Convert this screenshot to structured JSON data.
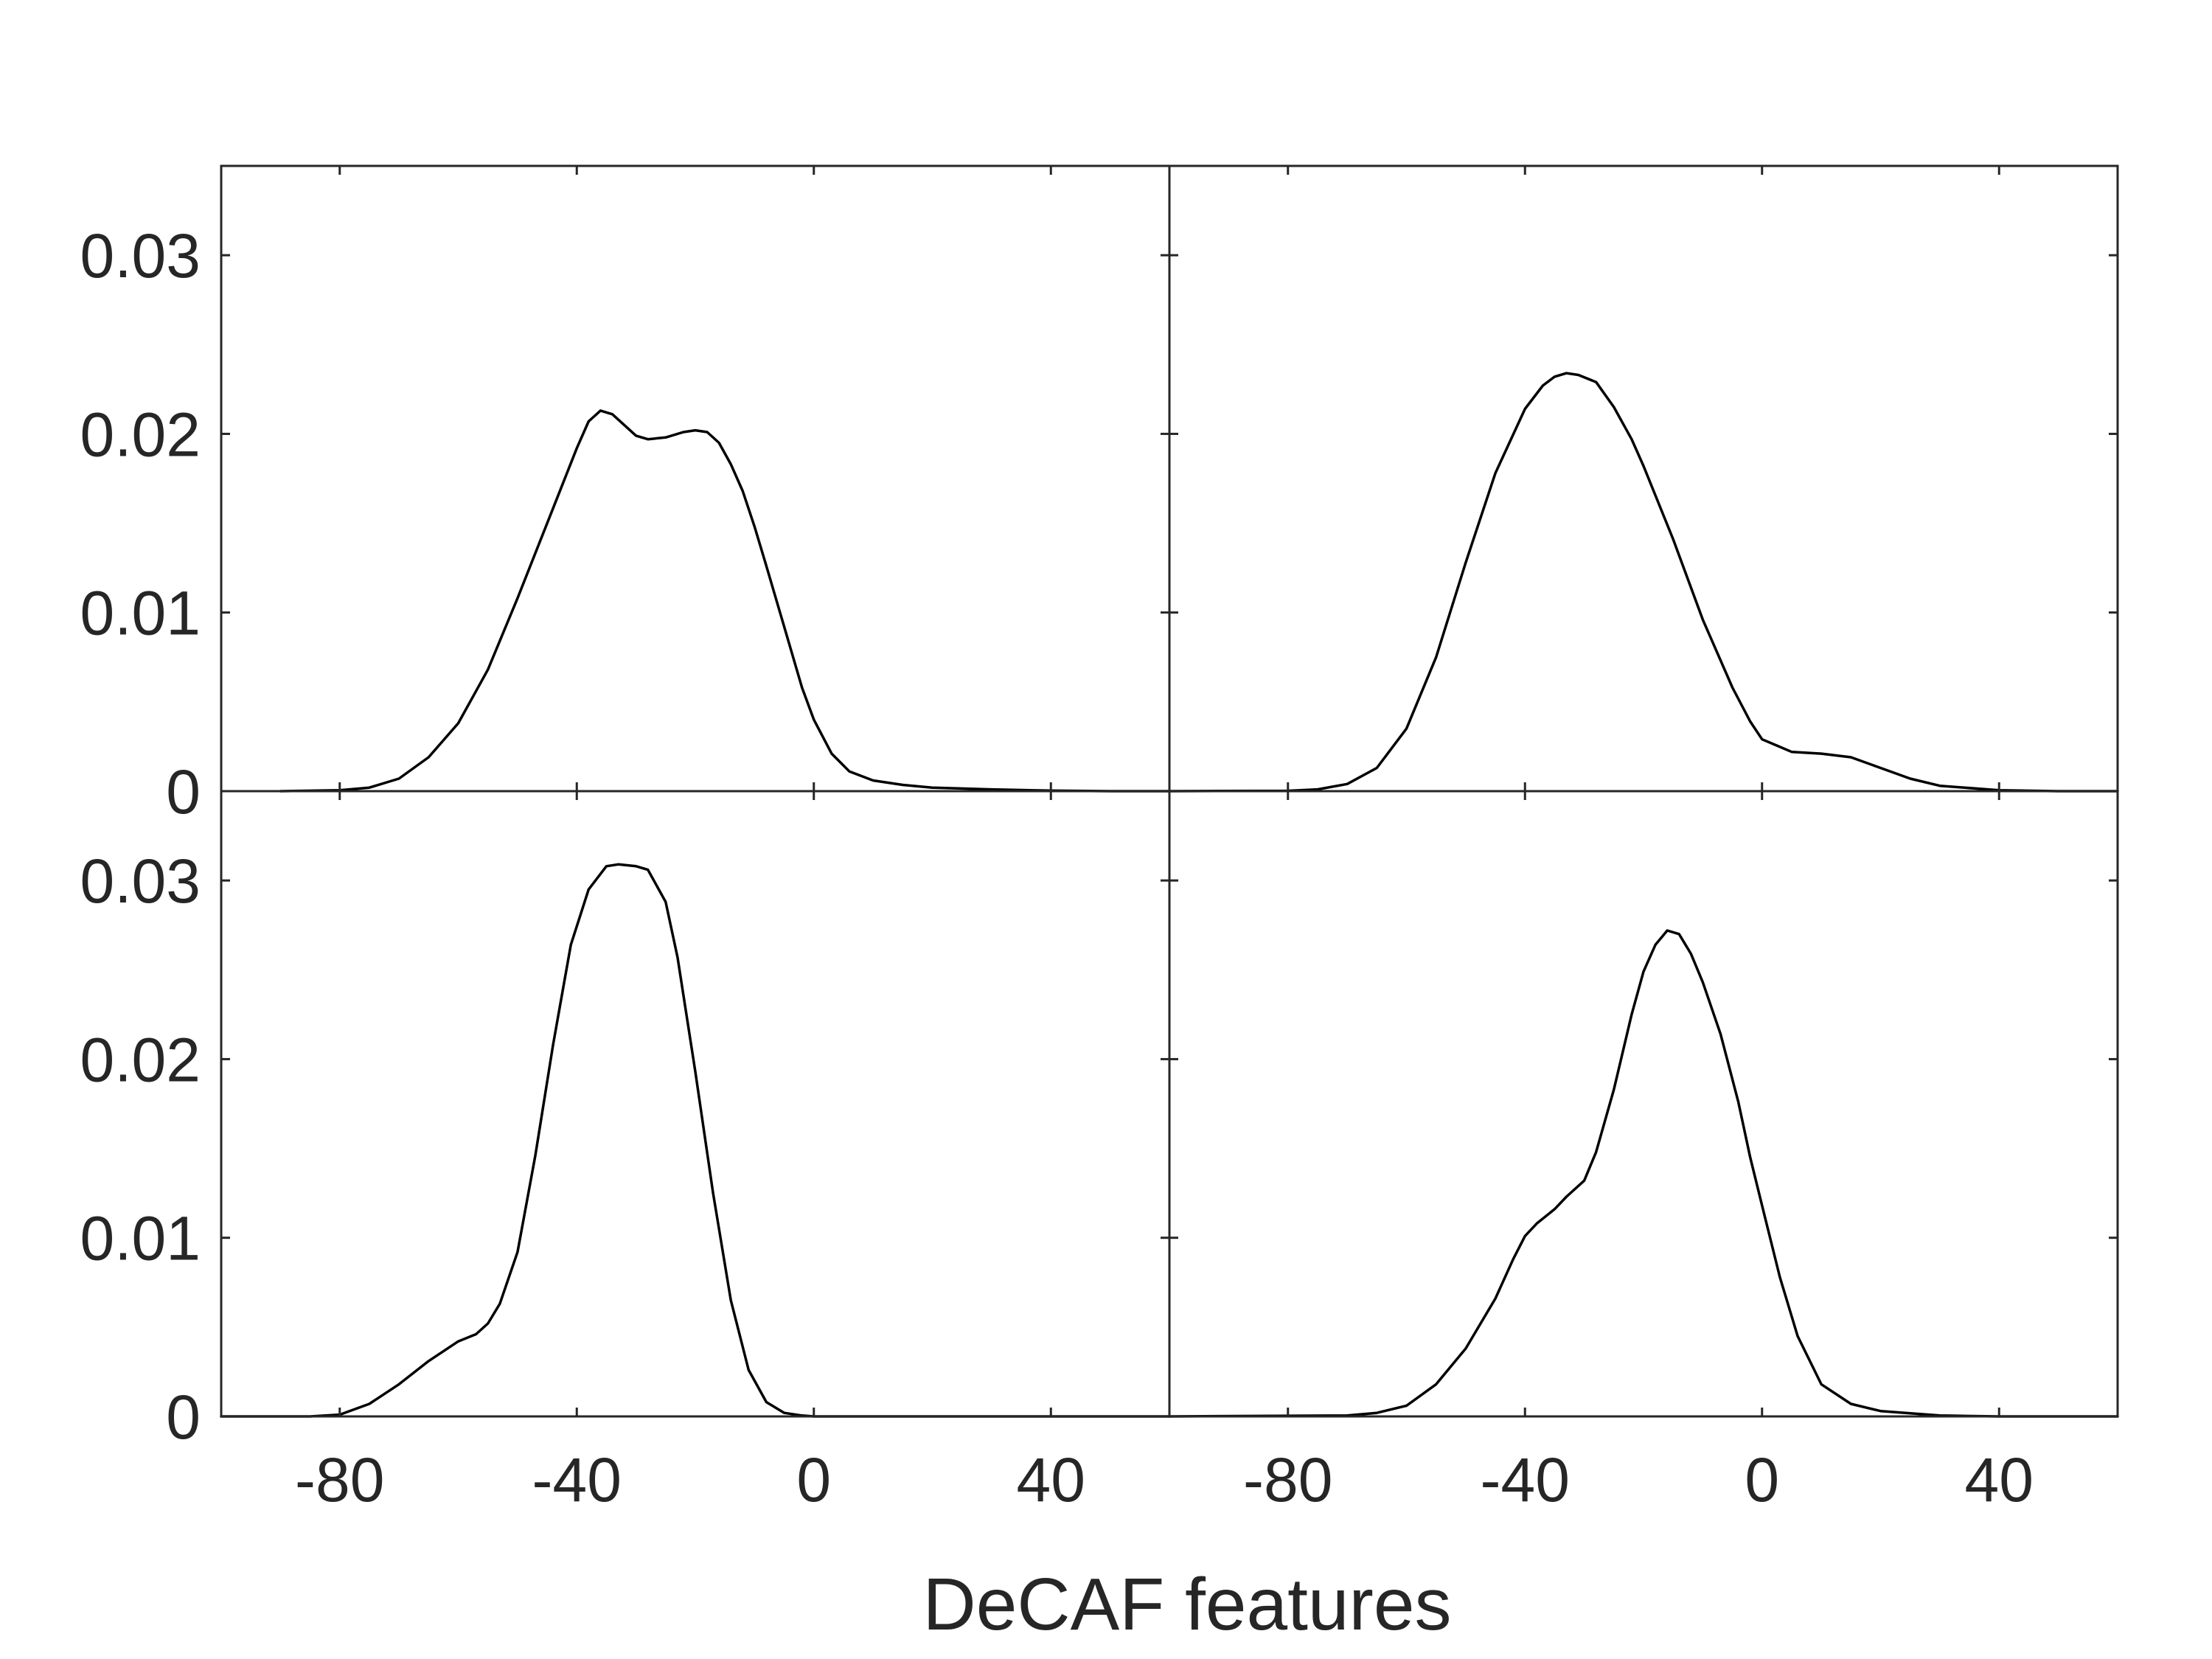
{
  "chart_data": {
    "type": "line",
    "layout": "2x2 grid of density panels sharing axes",
    "xlabel": "DeCAF features",
    "ylabel": "",
    "xlim": [
      -100,
      60
    ],
    "ylim": [
      0,
      0.035
    ],
    "xticks": [
      -80,
      -40,
      0,
      40
    ],
    "xtick_labels": [
      "-80",
      "-40",
      "0",
      "40"
    ],
    "yticks": [
      0,
      0.01,
      0.02,
      0.03
    ],
    "ytick_labels": [
      "0",
      "0.01",
      "0.02",
      "0.03"
    ],
    "grid": false,
    "line_color": "#000000",
    "axis_color": "#262626",
    "panels": [
      {
        "position": "top-left",
        "series": [
          {
            "x": [
              -90,
              -80,
              -75,
              -70,
              -65,
              -60,
              -55,
              -50,
              -45,
              -40,
              -38,
              -36,
              -34,
              -32,
              -30,
              -28,
              -25,
              -22,
              -20,
              -18,
              -16,
              -14,
              -12,
              -10,
              -8,
              -5,
              -2,
              0,
              3,
              6,
              10,
              15,
              20,
              30,
              40,
              50,
              60
            ],
            "y": [
              0,
              5e-05,
              0.0002,
              0.0007,
              0.0019,
              0.0038,
              0.0068,
              0.0108,
              0.015,
              0.0192,
              0.0207,
              0.0213,
              0.0211,
              0.0205,
              0.0199,
              0.0197,
              0.0198,
              0.0201,
              0.0202,
              0.0201,
              0.0195,
              0.0183,
              0.0168,
              0.0148,
              0.0126,
              0.0092,
              0.0058,
              0.004,
              0.0021,
              0.0011,
              0.0006,
              0.00035,
              0.0002,
              0.0001,
              3e-05,
              0,
              0
            ]
          }
        ]
      },
      {
        "position": "top-right",
        "series": [
          {
            "x": [
              -100,
              -80,
              -75,
              -70,
              -65,
              -60,
              -55,
              -50,
              -45,
              -40,
              -37,
              -35,
              -33,
              -31,
              -28,
              -25,
              -22,
              -20,
              -15,
              -10,
              -5,
              -2,
              0,
              5,
              10,
              15,
              20,
              25,
              30,
              40,
              50,
              60
            ],
            "y": [
              0,
              2e-05,
              0.0001,
              0.0004,
              0.0013,
              0.0035,
              0.0075,
              0.0128,
              0.0178,
              0.0214,
              0.0227,
              0.0232,
              0.0234,
              0.0233,
              0.0229,
              0.0215,
              0.0197,
              0.0182,
              0.0141,
              0.0096,
              0.0058,
              0.0039,
              0.0029,
              0.0022,
              0.0021,
              0.0019,
              0.0013,
              0.0007,
              0.0003,
              5e-05,
              0,
              0
            ]
          }
        ]
      },
      {
        "position": "bottom-left",
        "series": [
          {
            "x": [
              -100,
              -85,
              -80,
              -75,
              -70,
              -65,
              -60,
              -57,
              -55,
              -53,
              -50,
              -47,
              -44,
              -41,
              -38,
              -35,
              -33,
              -30,
              -28,
              -25,
              -23,
              -20,
              -17,
              -14,
              -11,
              -8,
              -5,
              -2,
              0,
              5,
              10,
              20,
              40,
              60
            ],
            "y": [
              0,
              0,
              0.0001,
              0.0007,
              0.0018,
              0.0031,
              0.0042,
              0.0046,
              0.0052,
              0.0063,
              0.0092,
              0.0146,
              0.0208,
              0.0264,
              0.0295,
              0.0308,
              0.0309,
              0.0308,
              0.0306,
              0.0288,
              0.0257,
              0.0193,
              0.0125,
              0.0065,
              0.0026,
              0.0008,
              0.0002,
              5e-05,
              0,
              0,
              0,
              0,
              0,
              0
            ]
          }
        ]
      },
      {
        "position": "bottom-right",
        "series": [
          {
            "x": [
              -100,
              -70,
              -65,
              -60,
              -55,
              -50,
              -45,
              -42,
              -40,
              -38,
              -35,
              -33,
              -30,
              -28,
              -25,
              -22,
              -20,
              -18,
              -16,
              -14,
              -12,
              -10,
              -7,
              -4,
              -2,
              0,
              3,
              6,
              10,
              15,
              20,
              30,
              40,
              50,
              60
            ],
            "y": [
              0,
              5e-05,
              0.0002,
              0.0006,
              0.0018,
              0.0038,
              0.0066,
              0.0088,
              0.0101,
              0.0108,
              0.0116,
              0.0123,
              0.0132,
              0.0148,
              0.0183,
              0.0225,
              0.0249,
              0.0264,
              0.0272,
              0.027,
              0.0259,
              0.0243,
              0.0214,
              0.0176,
              0.0145,
              0.0118,
              0.0078,
              0.0045,
              0.0018,
              0.0007,
              0.0003,
              5e-05,
              0,
              0,
              0
            ]
          }
        ]
      }
    ]
  }
}
